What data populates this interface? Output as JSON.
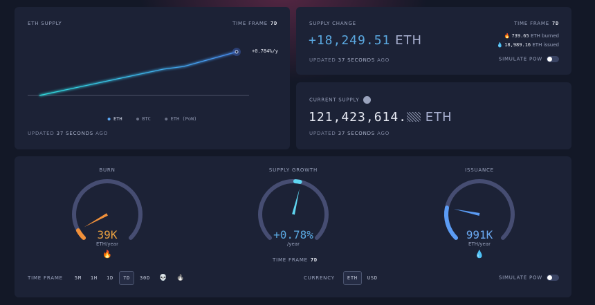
{
  "supply_chart": {
    "title": "ETH SUPPLY",
    "time_frame_label": "TIME FRAME",
    "time_frame": "7d",
    "end_label": "+0.784%/y",
    "legend": [
      "ETH",
      "BTC",
      "ETH (PoW)"
    ],
    "updated_prefix": "UPDATED",
    "updated_value": "37 SECONDS",
    "updated_suffix": "AGO",
    "line_color": "#2fd3e8"
  },
  "supply_change": {
    "title": "SUPPLY CHANGE",
    "time_frame_label": "TIME FRAME",
    "time_frame": "7d",
    "value": "+18,249.51",
    "unit": "ETH",
    "burned_value": "739.65",
    "burned_label": "ETH burned",
    "issued_value": "18,989.16",
    "issued_label": "ETH issued",
    "updated_prefix": "UPDATED",
    "updated_value": "37 SECONDS",
    "updated_suffix": "AGO",
    "simulate_label": "SIMULATE PoW",
    "simulate_on": false
  },
  "current_supply": {
    "title": "CURRENT SUPPLY",
    "value": "121,423,614.",
    "unit": "ETH",
    "updated_prefix": "UPDATED",
    "updated_value": "37 SECONDS",
    "updated_suffix": "AGO"
  },
  "gauges": [
    {
      "title": "BURN",
      "value": "39K",
      "unit": "ETH/year",
      "level": 0.06,
      "color": "#f0903a",
      "icon": "fire-icon"
    },
    {
      "title": "SUPPLY GROWTH",
      "value": "+0.78%",
      "unit": "/year",
      "level": 0.55,
      "color": "#5fd5f0",
      "icon": ""
    },
    {
      "title": "ISSUANCE",
      "value": "991K",
      "unit": "ETH/year",
      "level": 0.21,
      "color": "#5b9cf5",
      "icon": "droplet-icon"
    }
  ],
  "growth_time_frame_label": "TIME FRAME",
  "growth_time_frame": "7d",
  "controls": {
    "time_frame_label": "TIME FRAME",
    "time_frames": [
      "5m",
      "1h",
      "1d",
      "7d",
      "30d"
    ],
    "selected_time_frame": "7d",
    "currency_label": "CURRENCY",
    "currencies": [
      "ETH",
      "USD"
    ],
    "selected_currency": "ETH",
    "simulate_label": "SIMULATE PoW",
    "simulate_on": false
  }
}
